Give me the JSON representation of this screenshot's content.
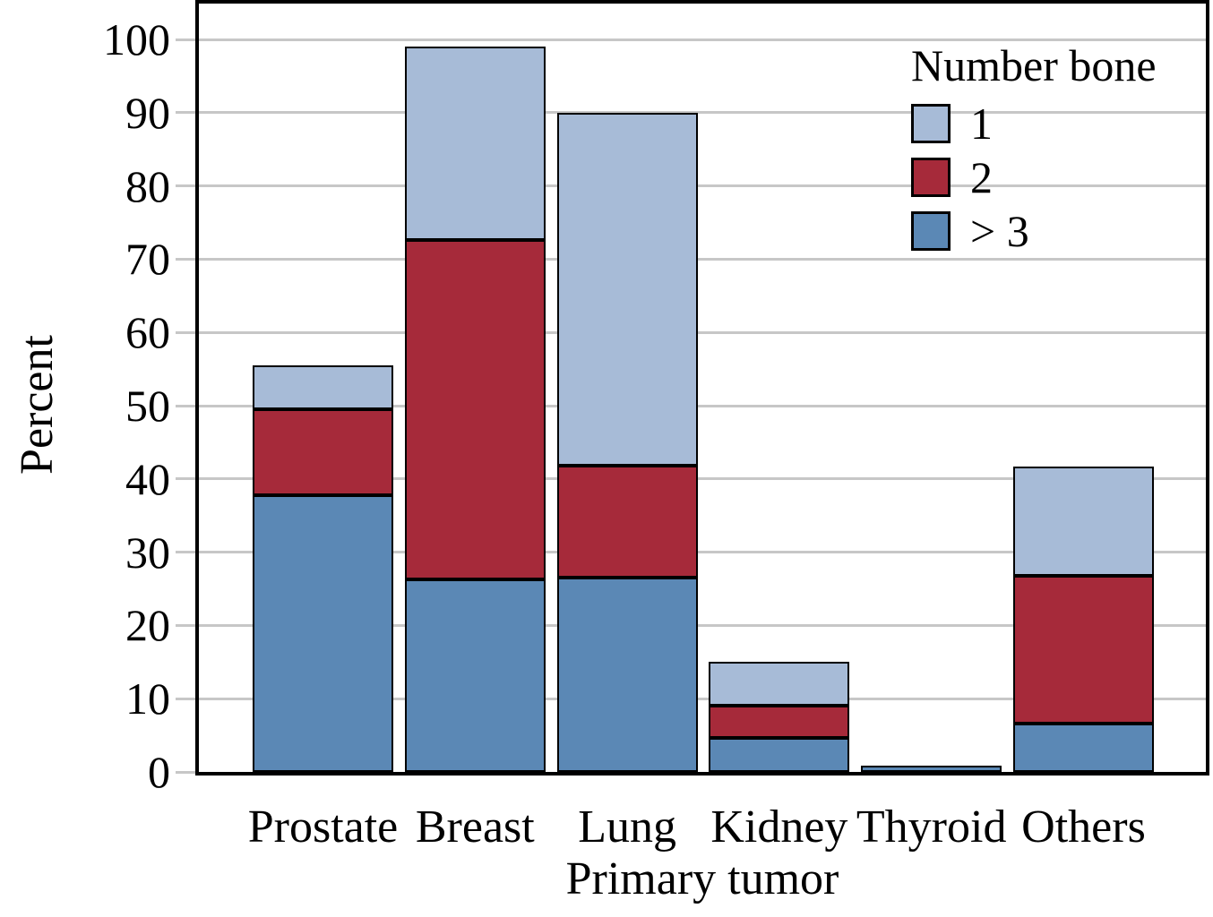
{
  "chart_data": {
    "type": "bar",
    "stacked": true,
    "title": "",
    "xlabel": "Primary tumor",
    "ylabel": "Percent",
    "categories": [
      "Prostate",
      "Breast",
      "Lung",
      "Kidney",
      "Thyroid",
      "Others"
    ],
    "series": [
      {
        "name": "> 3",
        "color": "#5b88b5",
        "values": [
          37.8,
          26.3,
          26.5,
          4.6,
          0.9,
          6.6
        ]
      },
      {
        "name": "2",
        "color": "#a62a3a",
        "values": [
          11.7,
          46.3,
          15.3,
          4.5,
          0.0,
          20.2
        ]
      },
      {
        "name": "1",
        "color": "#a7bbd7",
        "values": [
          6.0,
          26.4,
          48.2,
          5.9,
          0.0,
          14.9
        ]
      }
    ],
    "bar_totals": [
      55.5,
      99.0,
      90.0,
      15.0,
      0.9,
      41.7
    ],
    "y_ticks": [
      0,
      10,
      20,
      30,
      40,
      50,
      60,
      70,
      80,
      90,
      100
    ],
    "ylim": [
      0,
      105
    ],
    "grid": "horizontal",
    "legend": {
      "title": "Number bone",
      "position": "top-right",
      "entries": [
        {
          "label": "1",
          "color": "#a7bbd7"
        },
        {
          "label": "2",
          "color": "#a62a3a"
        },
        {
          "label": "> 3",
          "color": "#5b88b5"
        }
      ]
    }
  },
  "colors": {
    "bar_border": "#000000",
    "frame": "#000000",
    "gridline": "#c7c7c7",
    "background": "#ffffff"
  }
}
